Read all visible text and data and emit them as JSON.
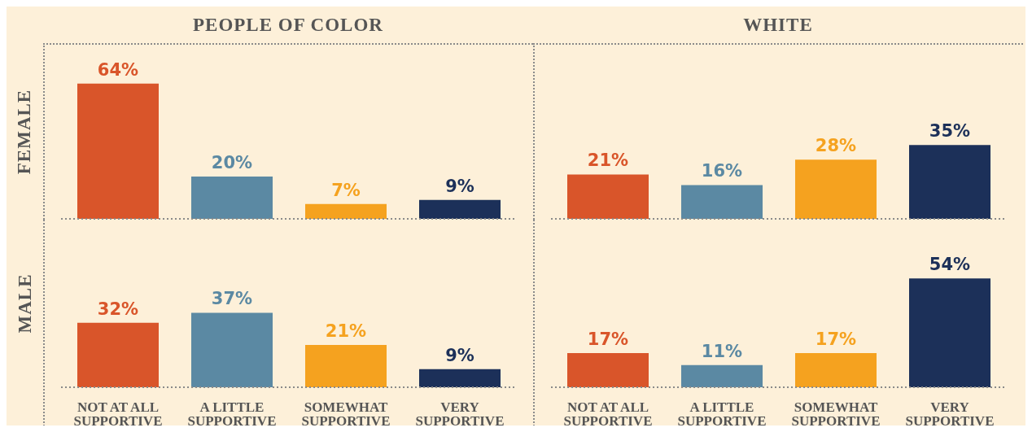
{
  "chart_data": [
    {
      "type": "bar",
      "title": "PEOPLE OF COLOR",
      "ylabel": "FEMALE",
      "categories": [
        null,
        null,
        null,
        null
      ],
      "values": [
        64,
        20,
        7,
        9
      ],
      "value_labels": [
        "64%",
        "20%",
        "7%",
        "9%"
      ],
      "colors": [
        "#d9552a",
        "#5b89a3",
        "#f5a21f",
        "#1c3059"
      ],
      "tick_labels": false
    },
    {
      "type": "bar",
      "title": "WHITE",
      "categories": [
        null,
        null,
        null,
        null
      ],
      "values": [
        21,
        16,
        28,
        35
      ],
      "value_labels": [
        "21%",
        "16%",
        "28%",
        "35%"
      ],
      "colors": [
        "#d9552a",
        "#5b89a3",
        "#f5a21f",
        "#1c3059"
      ],
      "tick_labels": false
    },
    {
      "type": "bar",
      "ylabel": "MALE",
      "categories": [
        "NOT AT ALL SUPPORTIVE",
        "A LITTLE SUPPORTIVE",
        "SOMEWHAT SUPPORTIVE",
        "VERY SUPPORTIVE"
      ],
      "values": [
        32,
        37,
        21,
        9
      ],
      "value_labels": [
        "32%",
        "37%",
        "21%",
        "9%"
      ],
      "colors": [
        "#d9552a",
        "#5b89a3",
        "#f5a21f",
        "#1c3059"
      ],
      "tick_labels": "x"
    },
    {
      "type": "bar",
      "categories": [
        "NOT AT ALL SUPPORTIVE",
        "A LITTLE SUPPORTIVE",
        "SOMEWHAT SUPPORTIVE",
        "VERY SUPPORTIVE"
      ],
      "values": [
        17,
        11,
        17,
        54
      ],
      "value_labels": [
        "17%",
        "11%",
        "17%",
        "54%"
      ],
      "colors": [
        "#d9552a",
        "#5b89a3",
        "#f5a21f",
        "#1c3059"
      ],
      "tick_labels": "x"
    }
  ]
}
